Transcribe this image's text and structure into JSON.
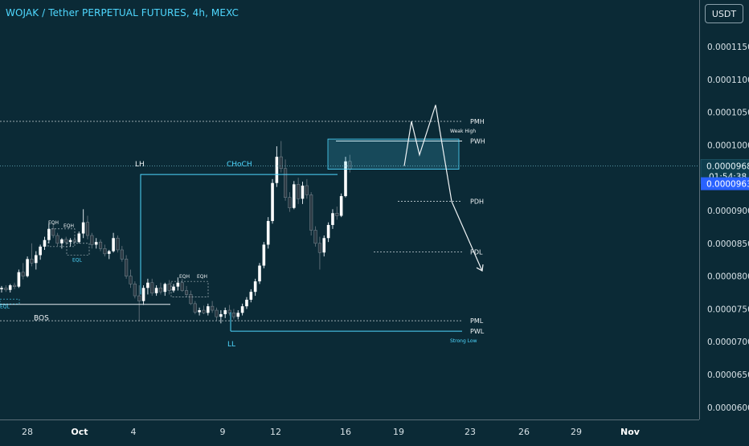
{
  "header": {
    "title": "WOJAK / Tether PERPETUAL FUTURES, 4h, MEXC",
    "currency": "USDT"
  },
  "colors": {
    "background": "#0b2a36",
    "up": "#ffffff",
    "down": "#2c3a44",
    "accent": "#4fd8ff",
    "price_tag": "#2962ff"
  },
  "price_axis": {
    "labels": [
      "0.0001150",
      "0.0001100",
      "0.0001050",
      "0.0001000",
      "0.0000950",
      "0.0000900",
      "0.0000850",
      "0.0000800",
      "0.0000750",
      "0.0000700",
      "0.0000650",
      "0.0000600"
    ],
    "current_price": "0.0000968",
    "countdown": "01:54:38",
    "last_price": "0.0000963"
  },
  "time_axis": {
    "labels": [
      "28",
      "Oct",
      "4",
      "9",
      "12",
      "16",
      "19",
      "23",
      "26",
      "29",
      "Nov"
    ]
  },
  "chart_data": {
    "type": "candlestick",
    "title": "WOJAK / Tether PERPETUAL FUTURES, 4h, MEXC",
    "x_ticks": [
      "28",
      "Oct",
      "4",
      "9",
      "12",
      "16",
      "19",
      "23",
      "26",
      "29",
      "Nov"
    ],
    "y_range": [
      5.95e-05,
      0.0001185
    ],
    "y_ticks": [
      0.000115,
      0.00011,
      0.000105,
      0.0001,
      9.5e-05,
      9e-05,
      8.5e-05,
      8e-05,
      7.5e-05,
      7e-05,
      6.5e-05,
      6e-05
    ],
    "levels": [
      {
        "label": "PMH",
        "value": 0.0001036
      },
      {
        "label": "PWH",
        "value": 0.0001006
      },
      {
        "label": "PDH",
        "value": 9.14e-05
      },
      {
        "label": "PDL",
        "value": 8.37e-05
      },
      {
        "label": "PML",
        "value": 7.32e-05
      },
      {
        "label": "PWL",
        "value": 7.16e-05
      }
    ],
    "annotations": [
      "LH",
      "CHoCH",
      "BOS",
      "LL",
      "EQH",
      "EQH",
      "EQH",
      "EQH",
      "EQL",
      "EQL",
      "Weak High",
      "Strong Low"
    ],
    "current_price": 9.68e-05,
    "last_price": 9.63e-05,
    "candles": [
      [
        7.8e-05,
        7.85e-05,
        7.75e-05,
        7.82e-05
      ],
      [
        7.82e-05,
        7.86e-05,
        7.76e-05,
        7.79e-05
      ],
      [
        7.79e-05,
        7.88e-05,
        7.75e-05,
        7.86e-05
      ],
      [
        7.86e-05,
        7.9e-05,
        7.8e-05,
        7.84e-05
      ],
      [
        7.84e-05,
        8.1e-05,
        7.82e-05,
        8.06e-05
      ],
      [
        8.06e-05,
        8.2e-05,
        7.95e-05,
        8e-05
      ],
      [
        8e-05,
        8.3e-05,
        7.98e-05,
        8.26e-05
      ],
      [
        8.26e-05,
        8.5e-05,
        8.15e-05,
        8.2e-05
      ],
      [
        8.2e-05,
        8.38e-05,
        8.1e-05,
        8.32e-05
      ],
      [
        8.32e-05,
        8.48e-05,
        8.25e-05,
        8.45e-05
      ],
      [
        8.45e-05,
        8.6e-05,
        8.4e-05,
        8.55e-05
      ],
      [
        8.55e-05,
        8.8e-05,
        8.5e-05,
        8.72e-05
      ],
      [
        8.72e-05,
        8.8e-05,
        8.58e-05,
        8.62e-05
      ],
      [
        8.62e-05,
        8.66e-05,
        8.46e-05,
        8.5e-05
      ],
      [
        8.5e-05,
        8.58e-05,
        8.42e-05,
        8.56e-05
      ],
      [
        8.56e-05,
        8.6e-05,
        8.48e-05,
        8.52e-05
      ],
      [
        8.52e-05,
        8.58e-05,
        8.45e-05,
        8.55e-05
      ],
      [
        8.55e-05,
        8.6e-05,
        8.5e-05,
        8.52e-05
      ],
      [
        8.52e-05,
        8.68e-05,
        8.5e-05,
        8.65e-05
      ],
      [
        8.65e-05,
        9.02e-05,
        8.58e-05,
        8.82e-05
      ],
      [
        8.82e-05,
        8.92e-05,
        8.56e-05,
        8.62e-05
      ],
      [
        8.62e-05,
        8.66e-05,
        8.42e-05,
        8.48e-05
      ],
      [
        8.48e-05,
        8.58e-05,
        8.42e-05,
        8.52e-05
      ],
      [
        8.52e-05,
        8.56e-05,
        8.38e-05,
        8.42e-05
      ],
      [
        8.42e-05,
        8.48e-05,
        8.3e-05,
        8.34e-05
      ],
      [
        8.34e-05,
        8.4e-05,
        8.26e-05,
        8.38e-05
      ],
      [
        8.38e-05,
        8.66e-05,
        8.36e-05,
        8.58e-05
      ],
      [
        8.58e-05,
        8.62e-05,
        8.36e-05,
        8.4e-05
      ],
      [
        8.4e-05,
        8.46e-05,
        8.22e-05,
        8.26e-05
      ],
      [
        8.26e-05,
        8.32e-05,
        7.96e-05,
        8e-05
      ],
      [
        8e-05,
        8.1e-05,
        7.82e-05,
        7.88e-05
      ],
      [
        7.88e-05,
        7.92e-05,
        7.66e-05,
        7.7e-05
      ],
      [
        7.7e-05,
        7.86e-05,
        7.32e-05,
        7.62e-05
      ],
      [
        7.62e-05,
        7.86e-05,
        7.56e-05,
        7.82e-05
      ],
      [
        7.82e-05,
        7.96e-05,
        7.72e-05,
        7.9e-05
      ],
      [
        7.9e-05,
        7.96e-05,
        7.7e-05,
        7.74e-05
      ],
      [
        7.74e-05,
        7.86e-05,
        7.7e-05,
        7.82e-05
      ],
      [
        7.82e-05,
        7.9e-05,
        7.72e-05,
        7.76e-05
      ],
      [
        7.76e-05,
        7.9e-05,
        7.7e-05,
        7.88e-05
      ],
      [
        7.88e-05,
        7.94e-05,
        7.72e-05,
        7.78e-05
      ],
      [
        7.78e-05,
        7.88e-05,
        7.75e-05,
        7.84e-05
      ],
      [
        7.84e-05,
        7.98e-05,
        7.78e-05,
        7.9e-05
      ],
      [
        7.9e-05,
        7.96e-05,
        7.76e-05,
        7.78e-05
      ],
      [
        7.78e-05,
        7.85e-05,
        7.68e-05,
        7.72e-05
      ],
      [
        7.72e-05,
        7.78e-05,
        7.56e-05,
        7.58e-05
      ],
      [
        7.58e-05,
        7.62e-05,
        7.42e-05,
        7.45e-05
      ],
      [
        7.45e-05,
        7.52e-05,
        7.4e-05,
        7.48e-05
      ],
      [
        7.48e-05,
        7.55e-05,
        7.42e-05,
        7.44e-05
      ],
      [
        7.44e-05,
        7.58e-05,
        7.4e-05,
        7.54e-05
      ],
      [
        7.54e-05,
        7.62e-05,
        7.44e-05,
        7.48e-05
      ],
      [
        7.48e-05,
        7.52e-05,
        7.32e-05,
        7.38e-05
      ],
      [
        7.38e-05,
        7.48e-05,
        7.28e-05,
        7.42e-05
      ],
      [
        7.42e-05,
        7.52e-05,
        7.36e-05,
        7.48e-05
      ],
      [
        7.48e-05,
        7.56e-05,
        7.4e-05,
        7.44e-05
      ],
      [
        7.44e-05,
        7.5e-05,
        7.34e-05,
        7.38e-05
      ],
      [
        7.38e-05,
        7.48e-05,
        7.34e-05,
        7.44e-05
      ],
      [
        7.44e-05,
        7.58e-05,
        7.4e-05,
        7.54e-05
      ],
      [
        7.54e-05,
        7.68e-05,
        7.5e-05,
        7.64e-05
      ],
      [
        7.64e-05,
        7.8e-05,
        7.6e-05,
        7.76e-05
      ],
      [
        7.76e-05,
        7.96e-05,
        7.7e-05,
        7.92e-05
      ],
      [
        7.92e-05,
        8.2e-05,
        7.88e-05,
        8.16e-05
      ],
      [
        8.16e-05,
        8.52e-05,
        8.12e-05,
        8.48e-05
      ],
      [
        8.48e-05,
        8.9e-05,
        8.42e-05,
        8.84e-05
      ],
      [
        8.84e-05,
        9.48e-05,
        8.8e-05,
        9.42e-05
      ],
      [
        9.42e-05,
        9.98e-05,
        9.36e-05,
        9.82e-05
      ],
      [
        9.82e-05,
        0.0001006,
        9.58e-05,
        9.64e-05
      ],
      [
        9.64e-05,
        9.78e-05,
        9.15e-05,
        9.2e-05
      ],
      [
        9.2e-05,
        9.28e-05,
        8.98e-05,
        9.04e-05
      ],
      [
        9.04e-05,
        9.45e-05,
        9.02e-05,
        9.4e-05
      ],
      [
        9.4e-05,
        9.5e-05,
        9.1e-05,
        9.18e-05
      ],
      [
        9.18e-05,
        9.44e-05,
        9.1e-05,
        9.38e-05
      ],
      [
        9.38e-05,
        9.48e-05,
        9.18e-05,
        9.24e-05
      ],
      [
        9.24e-05,
        9.28e-05,
        8.62e-05,
        8.7e-05
      ],
      [
        8.7e-05,
        8.76e-05,
        8.45e-05,
        8.5e-05
      ],
      [
        8.5e-05,
        8.6e-05,
        8.1e-05,
        8.36e-05
      ],
      [
        8.36e-05,
        8.62e-05,
        8.3e-05,
        8.58e-05
      ],
      [
        8.58e-05,
        8.82e-05,
        8.52e-05,
        8.78e-05
      ],
      [
        8.78e-05,
        9.02e-05,
        8.72e-05,
        8.96e-05
      ],
      [
        8.96e-05,
        9.06e-05,
        8.86e-05,
        8.92e-05
      ],
      [
        8.92e-05,
        9.26e-05,
        8.9e-05,
        9.22e-05
      ],
      [
        9.22e-05,
        9.82e-05,
        9.2e-05,
        9.75e-05
      ],
      [
        9.75e-05,
        9.85e-05,
        9.58e-05,
        9.63e-05
      ]
    ],
    "projection": [
      [
        9.68e-05,
        0.0001036
      ],
      [
        9.85e-05,
        0.0001061
      ],
      [
        9.14e-05,
        8.08e-05
      ]
    ]
  }
}
